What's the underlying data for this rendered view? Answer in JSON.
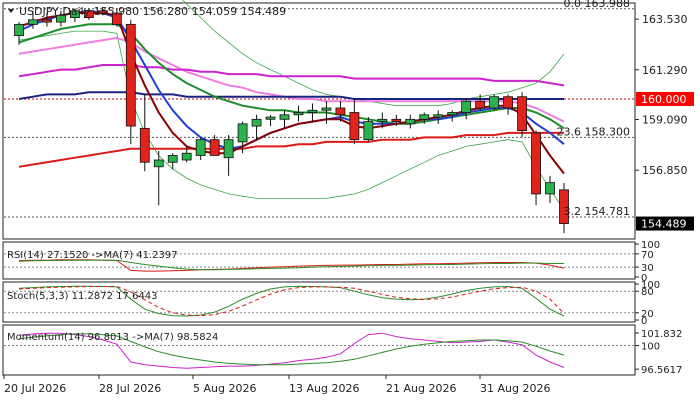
{
  "chart_data": {
    "type": "candlestick",
    "title": "USDJPY,Daily  155.980 156.280 154.059 154.489",
    "colors": {
      "up": "#2bb24c",
      "down": "#e0231b",
      "background": "#ffffff",
      "price_tag": "#ff0000"
    },
    "x_labels": [
      "20 Jul 2026",
      "28 Jul 2026",
      "5 Aug 2026",
      "13 Aug 2026",
      "21 Aug 2026",
      "31 Aug 2026"
    ],
    "y_ticks": [
      163.53,
      161.29,
      159.09,
      156.85
    ],
    "ylim": [
      153.85,
      164.2
    ],
    "candles": [
      {
        "o": 162.8,
        "h": 163.4,
        "l": 162.4,
        "c": 163.3
      },
      {
        "o": 163.3,
        "h": 163.9,
        "l": 163.1,
        "c": 163.5
      },
      {
        "o": 163.5,
        "h": 163.8,
        "l": 163.2,
        "c": 163.4
      },
      {
        "o": 163.4,
        "h": 163.9,
        "l": 163.2,
        "c": 163.7
      },
      {
        "o": 163.6,
        "h": 164.0,
        "l": 163.4,
        "c": 163.9
      },
      {
        "o": 163.9,
        "h": 164.0,
        "l": 163.5,
        "c": 163.6
      },
      {
        "o": 163.9,
        "h": 164.0,
        "l": 163.7,
        "c": 163.8
      },
      {
        "o": 163.8,
        "h": 164.0,
        "l": 163.2,
        "c": 163.3
      },
      {
        "o": 163.3,
        "h": 163.5,
        "l": 158.0,
        "c": 158.8
      },
      {
        "o": 158.7,
        "h": 160.2,
        "l": 156.8,
        "c": 157.2
      },
      {
        "o": 157.0,
        "h": 157.7,
        "l": 155.3,
        "c": 157.3
      },
      {
        "o": 157.2,
        "h": 157.6,
        "l": 156.9,
        "c": 157.5
      },
      {
        "o": 157.3,
        "h": 157.9,
        "l": 157.2,
        "c": 157.6
      },
      {
        "o": 157.5,
        "h": 158.3,
        "l": 157.3,
        "c": 158.2
      },
      {
        "o": 158.2,
        "h": 158.4,
        "l": 157.6,
        "c": 157.5
      },
      {
        "o": 157.4,
        "h": 158.4,
        "l": 156.6,
        "c": 158.2
      },
      {
        "o": 158.1,
        "h": 159.0,
        "l": 157.6,
        "c": 158.9
      },
      {
        "o": 158.8,
        "h": 159.3,
        "l": 158.2,
        "c": 159.1
      },
      {
        "o": 159.1,
        "h": 159.3,
        "l": 158.8,
        "c": 159.2
      },
      {
        "o": 159.1,
        "h": 159.5,
        "l": 158.7,
        "c": 159.3
      },
      {
        "o": 159.3,
        "h": 159.7,
        "l": 159.0,
        "c": 159.4
      },
      {
        "o": 159.4,
        "h": 159.8,
        "l": 159.0,
        "c": 159.5
      },
      {
        "o": 159.5,
        "h": 159.9,
        "l": 158.9,
        "c": 159.6
      },
      {
        "o": 159.6,
        "h": 159.9,
        "l": 159.0,
        "c": 159.3
      },
      {
        "o": 159.4,
        "h": 160.0,
        "l": 158.0,
        "c": 158.2
      },
      {
        "o": 158.2,
        "h": 159.2,
        "l": 158.1,
        "c": 159.0
      },
      {
        "o": 159.0,
        "h": 159.4,
        "l": 158.7,
        "c": 159.1
      },
      {
        "o": 159.1,
        "h": 159.3,
        "l": 158.8,
        "c": 159.0
      },
      {
        "o": 158.9,
        "h": 159.3,
        "l": 158.7,
        "c": 159.1
      },
      {
        "o": 159.1,
        "h": 159.4,
        "l": 158.9,
        "c": 159.3
      },
      {
        "o": 159.2,
        "h": 159.5,
        "l": 158.9,
        "c": 159.3
      },
      {
        "o": 159.3,
        "h": 159.5,
        "l": 159.0,
        "c": 159.4
      },
      {
        "o": 159.4,
        "h": 160.0,
        "l": 159.1,
        "c": 159.9
      },
      {
        "o": 159.9,
        "h": 160.2,
        "l": 159.5,
        "c": 159.6
      },
      {
        "o": 159.6,
        "h": 160.2,
        "l": 159.5,
        "c": 160.1
      },
      {
        "o": 160.1,
        "h": 160.2,
        "l": 159.3,
        "c": 159.6
      },
      {
        "o": 160.1,
        "h": 160.3,
        "l": 158.3,
        "c": 158.6
      },
      {
        "o": 158.5,
        "h": 158.6,
        "l": 155.3,
        "c": 155.8
      },
      {
        "o": 155.8,
        "h": 156.6,
        "l": 155.4,
        "c": 156.3
      },
      {
        "o": 155.98,
        "h": 156.28,
        "l": 154.059,
        "c": 154.489
      }
    ],
    "overlays": [
      {
        "name": "envelope-upper",
        "color": "#3aa64a",
        "width": 0.8,
        "values": [
          167.0,
          167.2,
          167.3,
          167.4,
          167.5,
          167.5,
          167.5,
          167.5,
          167.0,
          166.2,
          165.3,
          164.8,
          164.2,
          163.6,
          163.0,
          162.5,
          162.0,
          161.6,
          161.3,
          161.0,
          160.7,
          160.4,
          160.2,
          160.1,
          160.0,
          159.9,
          159.8,
          159.7,
          159.7,
          159.7,
          159.7,
          159.8,
          160.0,
          160.1,
          160.2,
          160.3,
          160.5,
          160.7,
          161.2,
          162.0
        ]
      },
      {
        "name": "envelope-lower",
        "color": "#3aa64a",
        "width": 0.8,
        "values": [
          162.6,
          162.7,
          162.8,
          162.9,
          163.0,
          163.0,
          163.0,
          162.9,
          160.0,
          158.5,
          157.5,
          156.9,
          156.5,
          156.2,
          156.0,
          155.8,
          155.7,
          155.6,
          155.6,
          155.6,
          155.6,
          155.6,
          155.6,
          155.7,
          155.8,
          156.0,
          156.3,
          156.6,
          156.9,
          157.2,
          157.5,
          157.7,
          157.9,
          158.0,
          158.1,
          158.2,
          158.1,
          157.0,
          156.0,
          155.1
        ]
      },
      {
        "name": "sma-pink",
        "color": "#ee7ee2",
        "width": 2,
        "values": [
          162.0,
          162.1,
          162.2,
          162.3,
          162.4,
          162.5,
          162.6,
          162.7,
          162.5,
          162.1,
          161.8,
          161.5,
          161.2,
          161.0,
          160.8,
          160.6,
          160.5,
          160.3,
          160.2,
          160.1,
          160.0,
          160.0,
          159.9,
          159.9,
          159.9,
          159.9,
          159.9,
          159.9,
          159.9,
          159.9,
          159.9,
          159.9,
          159.9,
          159.9,
          159.9,
          159.9,
          159.8,
          159.6,
          159.3,
          159.0
        ]
      },
      {
        "name": "sma-magenta",
        "color": "#cc22cc",
        "width": 2,
        "values": [
          161.0,
          161.1,
          161.2,
          161.3,
          161.3,
          161.4,
          161.5,
          161.5,
          161.5,
          161.4,
          161.4,
          161.3,
          161.3,
          161.2,
          161.2,
          161.1,
          161.1,
          161.1,
          161.0,
          161.0,
          161.0,
          161.0,
          161.0,
          161.0,
          160.9,
          160.9,
          160.9,
          160.9,
          160.9,
          160.9,
          160.9,
          160.9,
          160.9,
          160.9,
          160.8,
          160.8,
          160.8,
          160.8,
          160.7,
          160.6
        ]
      },
      {
        "name": "sma-navy",
        "color": "#1a237e",
        "width": 2,
        "values": [
          160.0,
          160.1,
          160.2,
          160.2,
          160.2,
          160.3,
          160.3,
          160.3,
          160.3,
          160.2,
          160.2,
          160.2,
          160.1,
          160.1,
          160.1,
          160.1,
          160.1,
          160.1,
          160.1,
          160.1,
          160.1,
          160.1,
          160.1,
          160.1,
          160.0,
          160.0,
          160.0,
          160.0,
          160.0,
          160.0,
          160.0,
          160.0,
          160.0,
          160.0,
          160.0,
          160.0,
          160.0,
          160.0,
          160.0,
          160.0
        ]
      },
      {
        "name": "sma-red",
        "color": "#dd1a1a",
        "width": 2,
        "values": [
          157.0,
          157.1,
          157.2,
          157.3,
          157.4,
          157.5,
          157.6,
          157.7,
          157.8,
          157.8,
          157.8,
          157.8,
          157.8,
          157.8,
          157.8,
          157.8,
          157.8,
          157.9,
          157.9,
          157.9,
          158.0,
          158.0,
          158.1,
          158.1,
          158.1,
          158.1,
          158.2,
          158.2,
          158.2,
          158.3,
          158.3,
          158.3,
          158.4,
          158.4,
          158.4,
          158.5,
          158.5,
          158.5,
          158.5,
          158.5
        ]
      },
      {
        "name": "sma-green",
        "color": "#1e8c2b",
        "width": 2,
        "values": [
          162.5,
          162.7,
          162.9,
          163.1,
          163.2,
          163.3,
          163.3,
          163.3,
          162.9,
          162.2,
          161.6,
          161.1,
          160.7,
          160.4,
          160.1,
          159.9,
          159.7,
          159.6,
          159.5,
          159.5,
          159.4,
          159.4,
          159.4,
          159.3,
          159.2,
          159.1,
          159.0,
          158.9,
          158.9,
          159.0,
          159.1,
          159.2,
          159.3,
          159.4,
          159.5,
          159.6,
          159.6,
          159.4,
          159.1,
          158.7
        ]
      },
      {
        "name": "sma-blue",
        "color": "#1f3fd6",
        "width": 2,
        "values": [
          163.0,
          163.3,
          163.5,
          163.7,
          163.8,
          163.9,
          163.8,
          163.6,
          162.6,
          161.5,
          160.4,
          159.5,
          158.8,
          158.3,
          158.0,
          157.8,
          157.9,
          158.2,
          158.5,
          158.7,
          158.9,
          159.0,
          159.1,
          159.2,
          159.0,
          158.9,
          158.9,
          158.9,
          159.0,
          159.1,
          159.1,
          159.2,
          159.4,
          159.5,
          159.6,
          159.6,
          159.4,
          158.9,
          158.5,
          158.0
        ]
      },
      {
        "name": "sma-darkred",
        "color": "#8b0000",
        "width": 2,
        "values": [
          163.2,
          163.4,
          163.6,
          163.7,
          163.8,
          163.8,
          163.8,
          163.7,
          162.0,
          160.6,
          159.4,
          158.5,
          157.9,
          157.7,
          157.6,
          157.6,
          157.9,
          158.2,
          158.5,
          158.7,
          158.9,
          159.0,
          159.1,
          159.1,
          158.8,
          158.7,
          158.8,
          158.9,
          159.0,
          159.1,
          159.2,
          159.3,
          159.5,
          159.6,
          159.7,
          159.7,
          159.3,
          158.4,
          157.5,
          156.7
        ]
      }
    ],
    "hlines": [
      {
        "price": 163.988,
        "label": "0.0 163.988",
        "style": "dotted",
        "color": "#555555",
        "label_x": "right"
      },
      {
        "price": 160.0,
        "label": "",
        "style": "dotted",
        "color": "#cc0000",
        "label_x": "none"
      },
      {
        "price": 158.3,
        "label": "23.6 158.300",
        "style": "dotted",
        "color": "#555555",
        "label_x": "right"
      },
      {
        "price": 154.781,
        "label": "3.2 154.781",
        "style": "dotted",
        "color": "#555555",
        "label_x": "right"
      }
    ],
    "price_tags": [
      {
        "price": 160.0,
        "label": "160.000",
        "bg": "#ff0000",
        "fg": "#ffffff"
      },
      {
        "price": 154.489,
        "label": "154.489",
        "bg": "#000000",
        "fg": "#ffffff"
      }
    ],
    "indicators": [
      {
        "title": "RSI(14) 27.1520  ->MA(7) 41.2397",
        "ylim": [
          0,
          100
        ],
        "ticks": [
          100,
          70,
          30,
          0
        ],
        "dotted_levels": [
          70,
          30
        ],
        "series": [
          {
            "color": "#dd1a1a",
            "values": [
              50,
              51,
              51,
              52,
              52,
              52,
              51,
              50,
              20,
              18,
              18,
              19,
              20,
              22,
              23,
              24,
              26,
              28,
              30,
              31,
              33,
              34,
              35,
              36,
              36,
              37,
              38,
              38,
              39,
              40,
              40,
              41,
              42,
              43,
              44,
              44,
              44,
              42,
              36,
              27
            ]
          },
          {
            "color": "#2a8f2a",
            "values": [
              48,
              49,
              50,
              50,
              51,
              51,
              51,
              51,
              44,
              38,
              33,
              28,
              24,
              22,
              22,
              23,
              24,
              25,
              26,
              27,
              28,
              30,
              31,
              32,
              33,
              34,
              35,
              35,
              36,
              37,
              38,
              38,
              39,
              40,
              41,
              41,
              42,
              42,
              41,
              41
            ]
          }
        ]
      },
      {
        "title": "Stoch(5,3,3) 11.2872 17.6443",
        "ylim": [
          0,
          100
        ],
        "ticks": [
          100,
          80,
          20,
          0
        ],
        "dotted_levels": [
          80,
          20
        ],
        "series": [
          {
            "color": "#2a8f2a",
            "values": [
              88,
              90,
              92,
              93,
              94,
              94,
              93,
              92,
              58,
              30,
              18,
              12,
              11,
              14,
              22,
              38,
              58,
              74,
              86,
              92,
              94,
              93,
              92,
              90,
              80,
              70,
              62,
              58,
              56,
              58,
              64,
              72,
              82,
              88,
              92,
              93,
              88,
              60,
              30,
              11
            ]
          },
          {
            "color": "#dd1a1a",
            "dash": "4,3",
            "values": [
              86,
              88,
              90,
              91,
              92,
              93,
              93,
              93,
              78,
              56,
              35,
              20,
              14,
              12,
              15,
              24,
              39,
              56,
              72,
              84,
              90,
              92,
              92,
              91,
              88,
              80,
              71,
              63,
              59,
              57,
              59,
              64,
              72,
              80,
              87,
              90,
              91,
              80,
              58,
              18
            ]
          }
        ]
      },
      {
        "title": "Momentum(14) 96.8013  ->MA(7) 98.5824",
        "ylim": [
          96.0,
          102.7
        ],
        "ticks_labels": [
          "101.832",
          "100",
          "96.5617"
        ],
        "ticks_values": [
          101.832,
          100,
          96.5617
        ],
        "dotted_levels": [
          100
        ],
        "series": [
          {
            "color": "#cc22cc",
            "values": [
              101.5,
              101.7,
              101.8,
              101.8,
              101.6,
              101.3,
              100.8,
              100.2,
              97.6,
              97.2,
              97.0,
              96.8,
              96.7,
              96.8,
              96.9,
              97.0,
              97.0,
              97.1,
              97.3,
              97.5,
              97.8,
              98.0,
              98.3,
              98.8,
              100.3,
              101.6,
              101.8,
              101.3,
              101.0,
              100.8,
              100.6,
              100.4,
              100.5,
              100.6,
              100.8,
              100.5,
              100.1,
              98.6,
              97.6,
              96.8
            ]
          },
          {
            "color": "#2a8f2a",
            "values": [
              101.0,
              101.2,
              101.4,
              101.6,
              101.7,
              101.7,
              101.6,
              101.4,
              100.6,
              99.8,
              99.1,
              98.6,
              98.2,
              97.9,
              97.6,
              97.4,
              97.3,
              97.2,
              97.2,
              97.2,
              97.3,
              97.4,
              97.5,
              97.7,
              98.0,
              98.5,
              99.0,
              99.5,
              99.9,
              100.2,
              100.4,
              100.6,
              100.7,
              100.8,
              100.8,
              100.7,
              100.5,
              99.9,
              99.2,
              98.6
            ]
          }
        ]
      }
    ]
  }
}
